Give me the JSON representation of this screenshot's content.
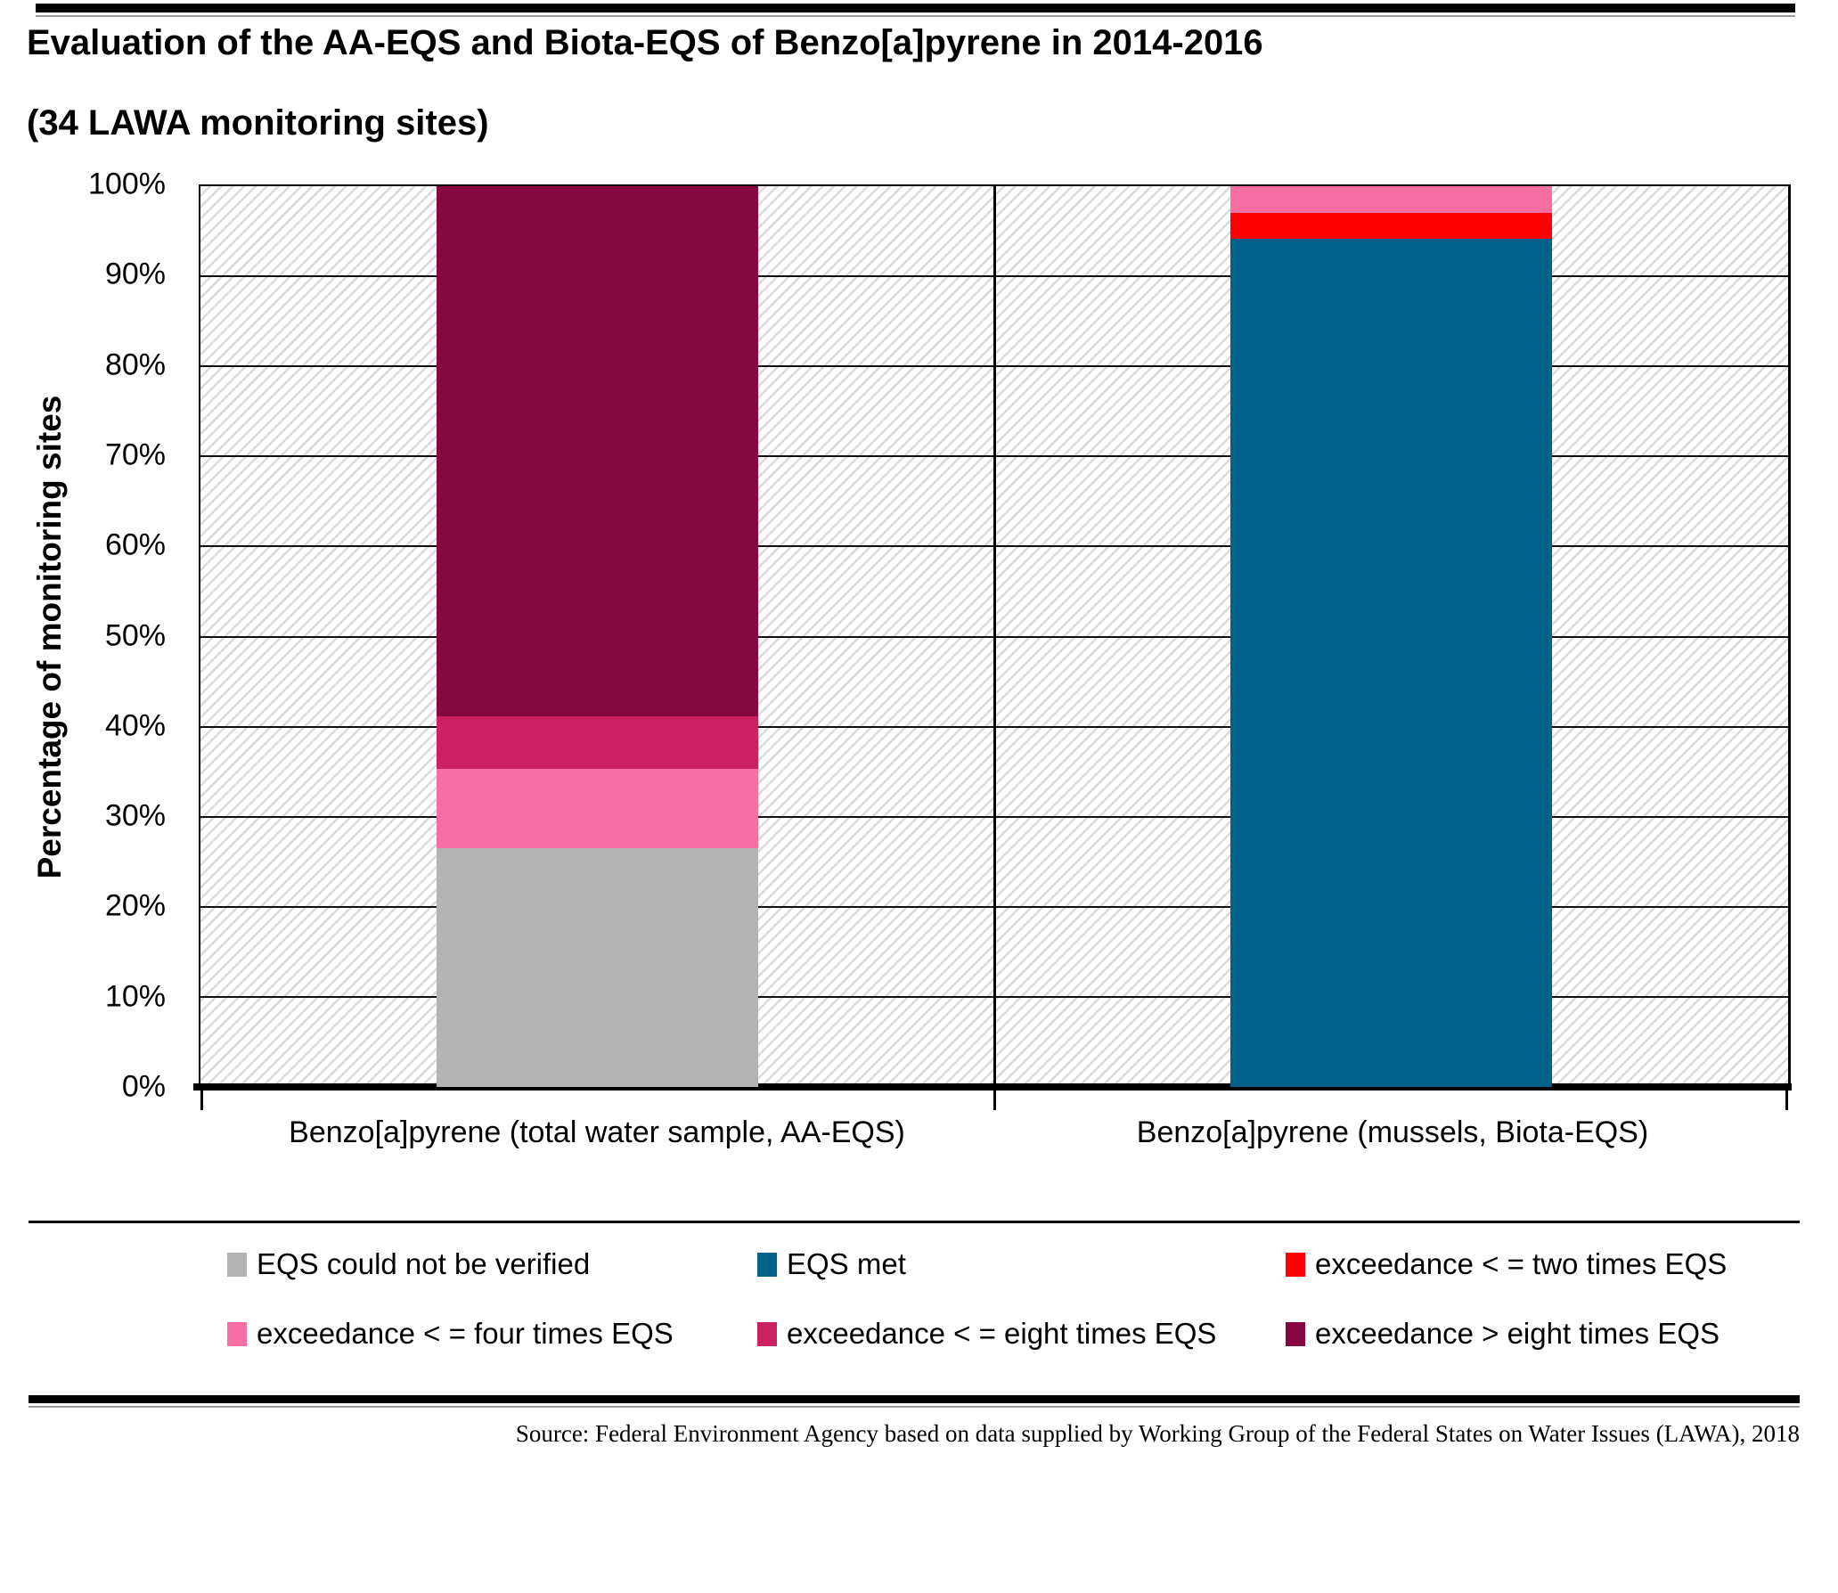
{
  "page": {
    "title": "Evaluation of the AA-EQS and Biota-EQS of Benzo[a]pyrene in 2014-2016",
    "subtitle": "(34 LAWA monitoring sites)",
    "source": "Source: Federal Environment Agency based on data supplied by Working Group of the Federal States on Water Issues (LAWA), 2018"
  },
  "chart_data": {
    "type": "bar",
    "stacked": true,
    "stack_total": 100,
    "title": "Evaluation of the AA-EQS and Biota-EQS of Benzo[a]pyrene in 2014-2016 (34 LAWA monitoring sites)",
    "categories": [
      "Benzo[a]pyrene (total water sample, AA-EQS)",
      "Benzo[a]pyrene (mussels, Biota-EQS)"
    ],
    "series": [
      {
        "name": "EQS could not be verified",
        "color": "#b3b3b3",
        "values": [
          26.47,
          0
        ]
      },
      {
        "name": "EQS met",
        "color": "#02618a",
        "values": [
          0,
          94.12
        ]
      },
      {
        "name": "exceedance < = two times EQS",
        "color": "#ff0000",
        "values": [
          0,
          2.94
        ]
      },
      {
        "name": "exceedance < = four times EQS",
        "color": "#f76ea2",
        "values": [
          8.82,
          2.94
        ]
      },
      {
        "name": "exceedance < = eight times EQS",
        "color": "#cb2161",
        "values": [
          5.88,
          0
        ]
      },
      {
        "name": "exceedance > eight times EQS",
        "color": "#850640",
        "values": [
          58.82,
          0
        ]
      }
    ],
    "xlabel": "",
    "ylabel": "Percentage of monitoring sites",
    "ylim": [
      0,
      100
    ],
    "ytick_step": 10,
    "ytick_labels": [
      "0%",
      "10%",
      "20%",
      "30%",
      "40%",
      "50%",
      "60%",
      "70%",
      "80%",
      "90%",
      "100%"
    ],
    "grid": true,
    "hatch_background": true,
    "legend_position": "bottom",
    "legend_rows": 2,
    "legend_columns": 3
  }
}
